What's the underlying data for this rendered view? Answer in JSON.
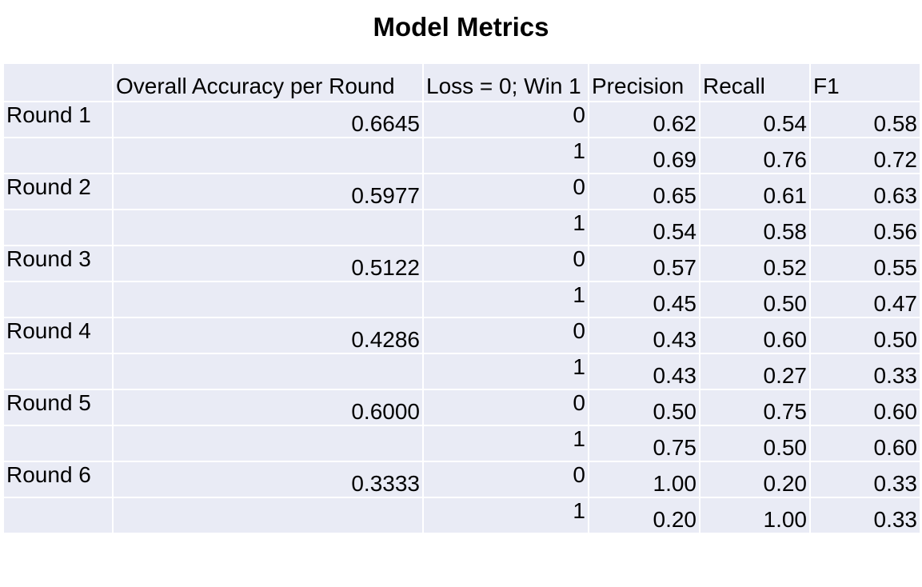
{
  "title": "Model Metrics",
  "chart_data": {
    "type": "table",
    "title": "Model Metrics",
    "columns": [
      "",
      "Overall Accuracy per Round",
      "Loss = 0; Win 1",
      "Precision",
      "Recall",
      "F1"
    ],
    "rows": [
      [
        "Round 1",
        "0.6645",
        "0",
        "0.62",
        "0.54",
        "0.58"
      ],
      [
        "",
        "",
        "1",
        "0.69",
        "0.76",
        "0.72"
      ],
      [
        "Round 2",
        "0.5977",
        "0",
        "0.65",
        "0.61",
        "0.63"
      ],
      [
        "",
        "",
        "1",
        "0.54",
        "0.58",
        "0.56"
      ],
      [
        "Round 3",
        "0.5122",
        "0",
        "0.57",
        "0.52",
        "0.55"
      ],
      [
        "",
        "",
        "1",
        "0.45",
        "0.50",
        "0.47"
      ],
      [
        "Round 4",
        "0.4286",
        "0",
        "0.43",
        "0.60",
        "0.50"
      ],
      [
        "",
        "",
        "1",
        "0.43",
        "0.27",
        "0.33"
      ],
      [
        "Round 5",
        "0.6000",
        "0",
        "0.50",
        "0.75",
        "0.60"
      ],
      [
        "",
        "",
        "1",
        "0.75",
        "0.50",
        "0.60"
      ],
      [
        "Round 6",
        "0.3333",
        "0",
        "1.00",
        "0.20",
        "0.33"
      ],
      [
        "",
        "",
        "1",
        "0.20",
        "1.00",
        "0.33"
      ]
    ],
    "cell_background": "#e9ebf5",
    "border_color": "#ffffff"
  }
}
